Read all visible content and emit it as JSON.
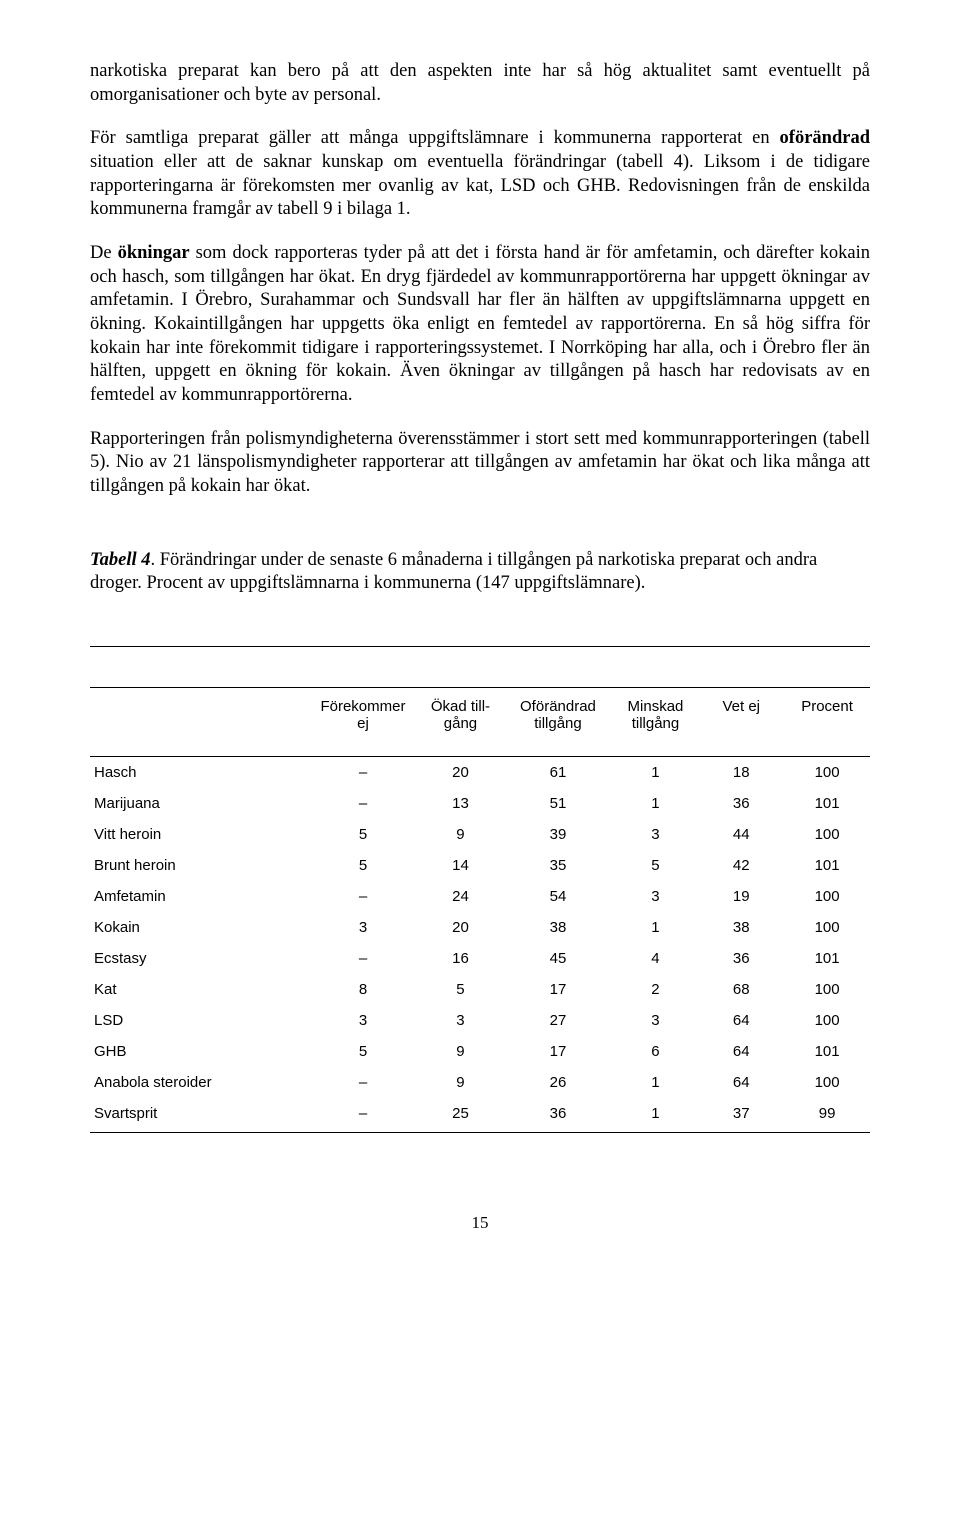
{
  "paragraphs": {
    "p1": "narkotiska preparat kan bero på att den aspekten inte har så hög aktualitet samt eventuellt på omorganisationer och byte av personal.",
    "p2_a": "För samtliga preparat gäller att många uppgiftslämnare i kommunerna rapporterat en ",
    "p2_b": "oförändrad",
    "p2_c": " situation eller att de saknar kunskap om eventuella förändringar (tabell 4). Liksom i de tidigare rapporteringarna är förekomsten mer ovanlig av kat, LSD och GHB. Redovisningen från de enskilda kommunerna framgår av tabell 9 i bilaga 1.",
    "p3_a": "De ",
    "p3_b": "ökningar",
    "p3_c": " som dock rapporteras tyder på att det i första hand är för amfetamin, och därefter kokain och hasch, som tillgången har ökat. En dryg fjärdedel av kommunrapportörerna har uppgett ökningar av amfetamin. I Örebro, Surahammar och Sundsvall har fler än hälften av uppgiftslämnarna uppgett en ökning. Kokaintillgången har uppgetts öka enligt en femtedel av rapportörerna. En så hög siffra för kokain har inte förekommit tidigare i rapporteringssystemet. I Norrköping har alla, och i Örebro fler än hälften, uppgett en ökning för kokain. Även ökningar av tillgången på hasch har redovisats av en femtedel av kommunrapportörerna.",
    "p4": "Rapporteringen från polismyndigheterna överensstämmer i stort sett med kommunrapporteringen (tabell 5). Nio av 21 länspolismyndigheter rapporterar att tillgången av amfetamin har ökat och lika många att tillgången på kokain har ökat."
  },
  "caption": {
    "label": "Tabell 4",
    "rest": ". Förändringar under de senaste 6 månaderna i tillgången på narkotiska preparat och andra droger. Procent av uppgiftslämnarna i kommunerna (147 uppgiftslämnare)."
  },
  "table": {
    "headers": [
      "",
      "Förekommer ej",
      "Ökad till-gång",
      "Oförändrad tillgång",
      "Minskad tillgång",
      "Vet ej",
      "Procent"
    ],
    "rows": [
      [
        "Hasch",
        "–",
        "20",
        "61",
        "1",
        "18",
        "100"
      ],
      [
        "Marijuana",
        "–",
        "13",
        "51",
        "1",
        "36",
        "101"
      ],
      [
        "Vitt heroin",
        "5",
        "9",
        "39",
        "3",
        "44",
        "100"
      ],
      [
        "Brunt heroin",
        "5",
        "14",
        "35",
        "5",
        "42",
        "101"
      ],
      [
        "Amfetamin",
        "–",
        "24",
        "54",
        "3",
        "19",
        "100"
      ],
      [
        "Kokain",
        "3",
        "20",
        "38",
        "1",
        "38",
        "100"
      ],
      [
        "Ecstasy",
        "–",
        "16",
        "45",
        "4",
        "36",
        "101"
      ],
      [
        "Kat",
        "8",
        "5",
        "17",
        "2",
        "68",
        "100"
      ],
      [
        "LSD",
        "3",
        "3",
        "27",
        "3",
        "64",
        "100"
      ],
      [
        "GHB",
        "5",
        "9",
        "17",
        "6",
        "64",
        "101"
      ],
      [
        "Anabola steroider",
        "–",
        "9",
        "26",
        "1",
        "64",
        "100"
      ],
      [
        "Svartsprit",
        "–",
        "25",
        "36",
        "1",
        "37",
        "99"
      ]
    ],
    "col_widths": [
      "28%",
      "14%",
      "11%",
      "14%",
      "11%",
      "11%",
      "11%"
    ]
  },
  "page_number": "15"
}
